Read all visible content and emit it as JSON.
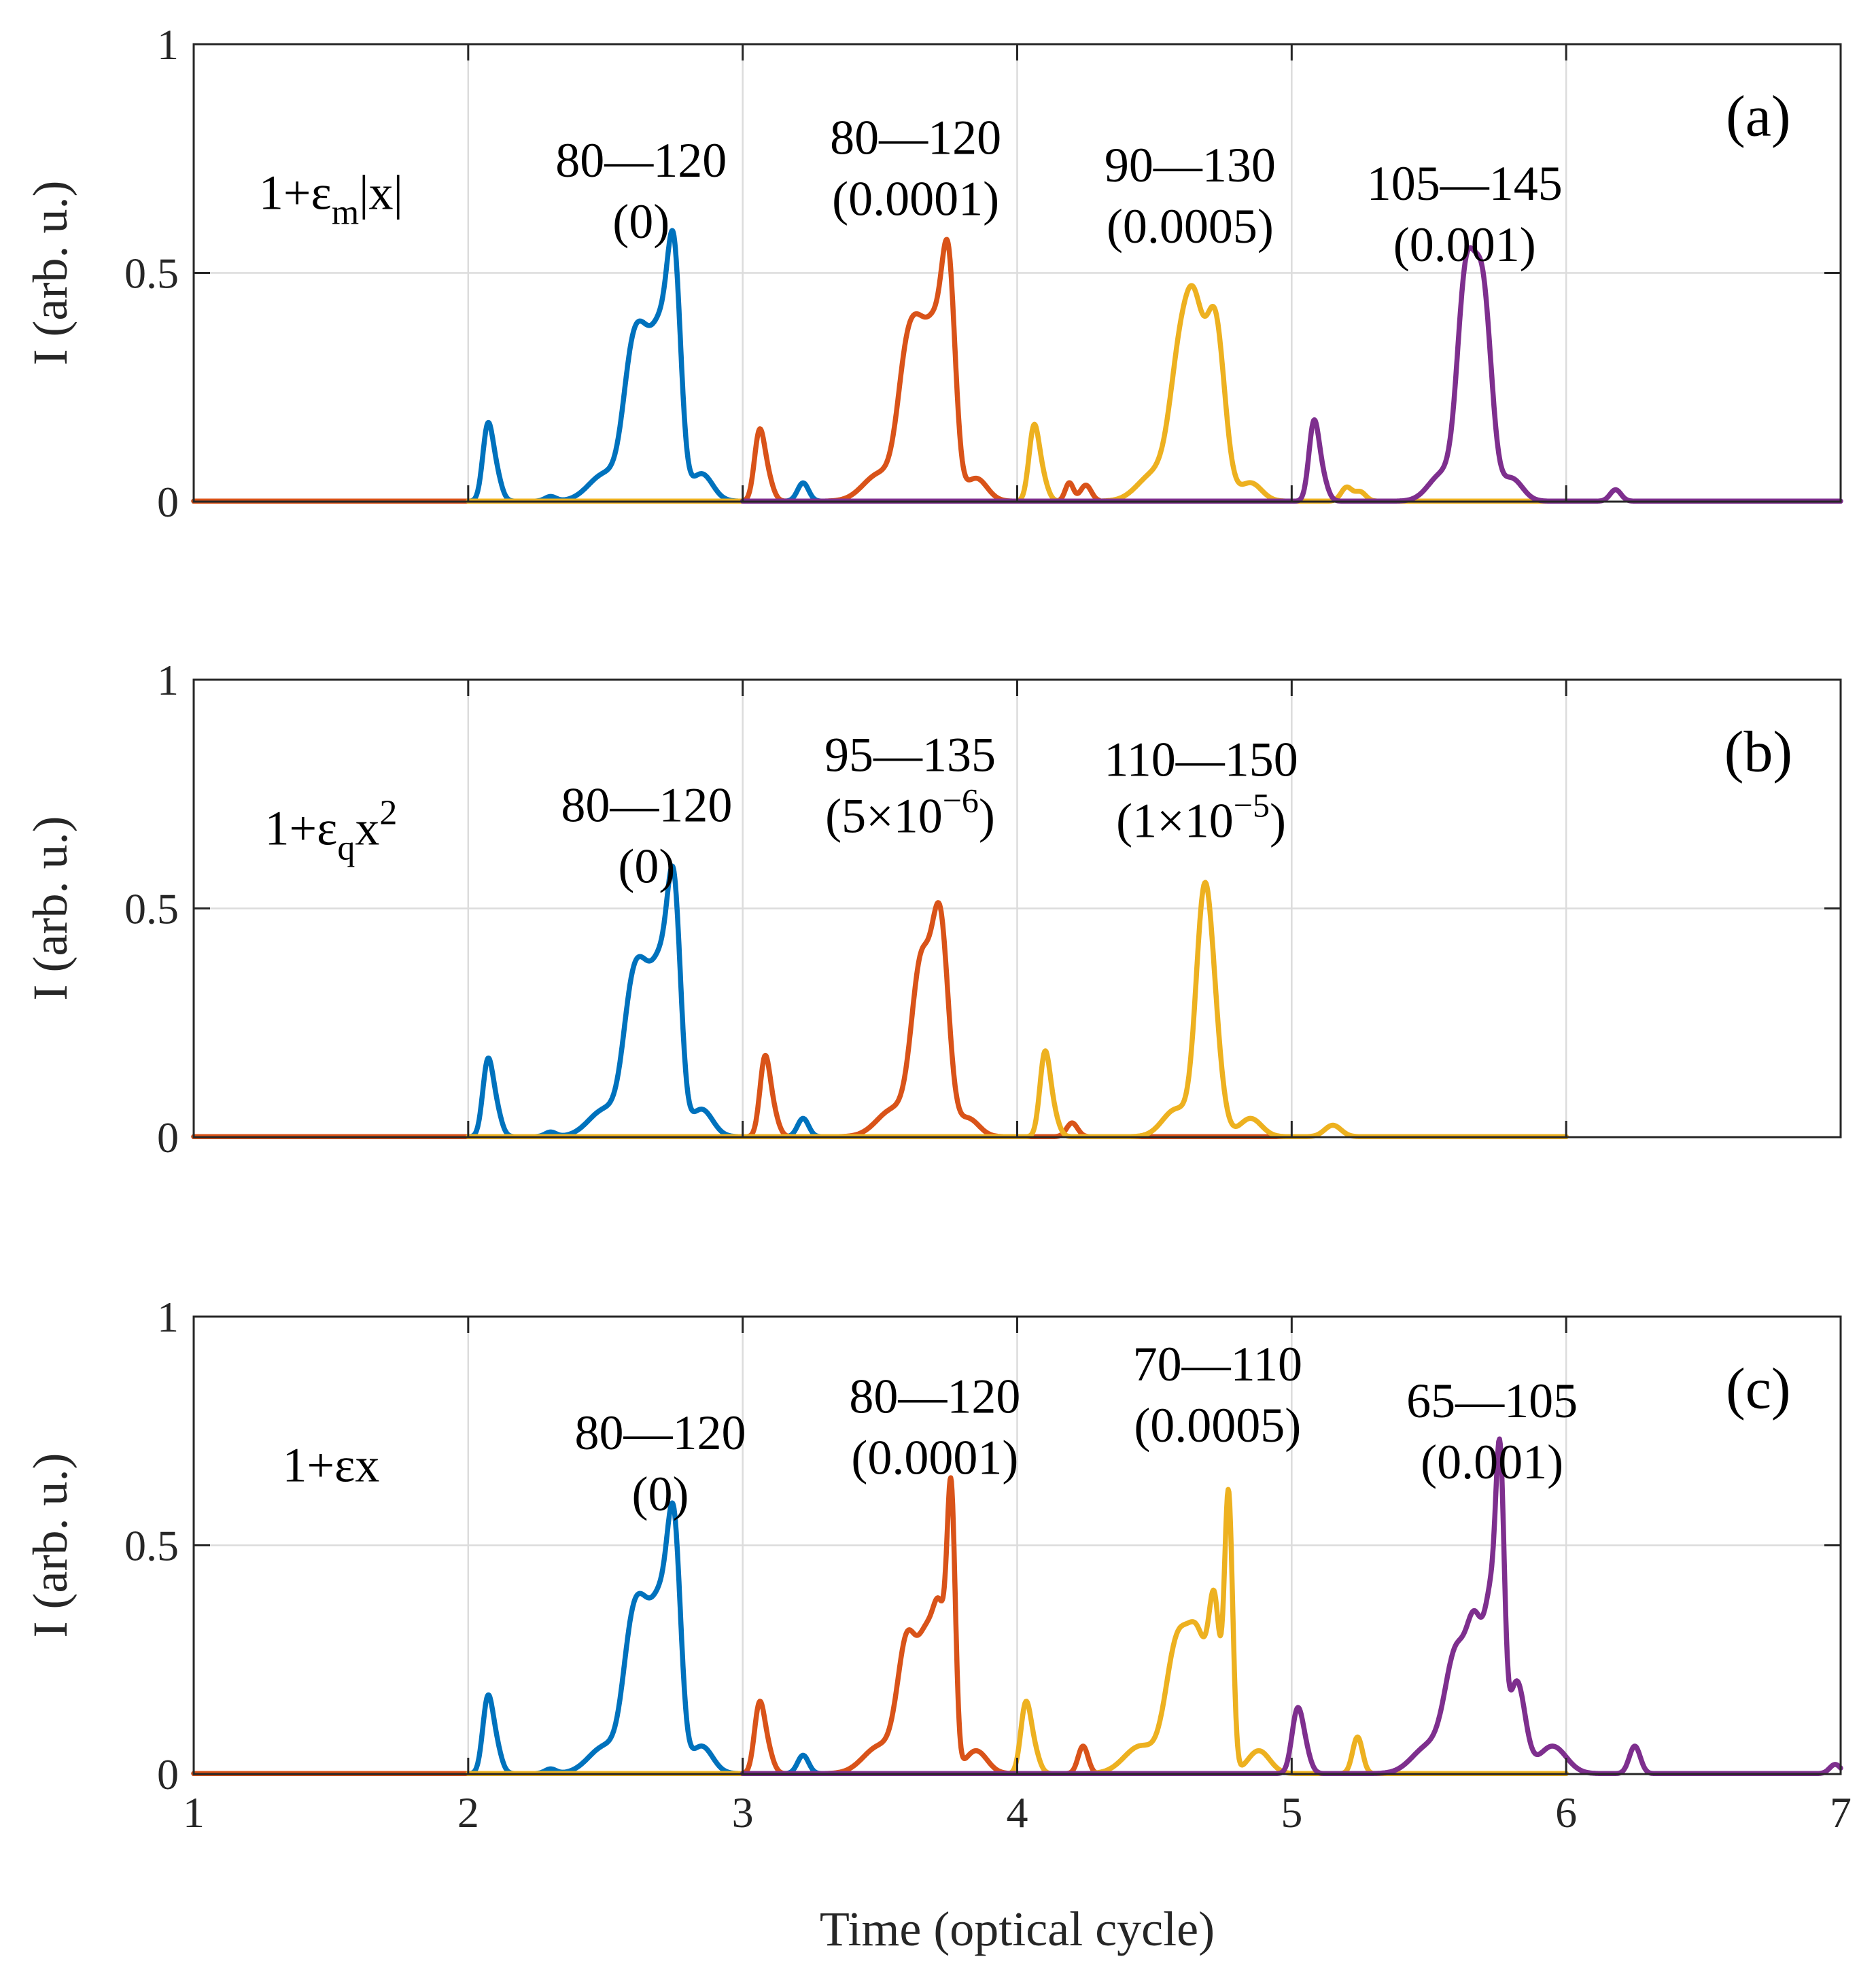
{
  "xlabel": "Time (optical cycle)",
  "colors": {
    "blue": "#0072BD",
    "orange": "#D95319",
    "yellow": "#EDB120",
    "purple": "#7E2F8E"
  },
  "chart_data": [
    {
      "type": "line",
      "panel": "(a)",
      "formula": {
        "base": "1+ε",
        "sub": "m",
        "tail": "|x|",
        "sup": ""
      },
      "ylabel": "I (arb. u.)",
      "xlim": [
        1,
        7
      ],
      "ylim": [
        0,
        1
      ],
      "xticks": [
        1,
        2,
        3,
        4,
        5,
        6,
        7
      ],
      "yticks": [
        0,
        0.5,
        1
      ],
      "ytick_labels": [
        "0",
        "0.5",
        "1"
      ],
      "grid": true,
      "annotations": [
        {
          "line1": "80—120",
          "line2": "(0)",
          "x": 2.63,
          "y": 0.71
        },
        {
          "line1": "80—120",
          "line2": "(0.0001)",
          "x": 3.63,
          "y": 0.76
        },
        {
          "line1": "90—130",
          "line2": "(0.0005)",
          "x": 4.63,
          "y": 0.7
        },
        {
          "line1": "105—145",
          "line2": "(0.001)",
          "x": 5.63,
          "y": 0.66
        }
      ],
      "series": [
        {
          "color": "#0072BD",
          "x_range": [
            1.0,
            3.3
          ],
          "peaks": [
            [
              2.07,
              0.15,
              0.018
            ],
            [
              2.1,
              0.06,
              0.02
            ],
            [
              2.3,
              0.01,
              0.02
            ],
            [
              2.6,
              0.3,
              0.035
            ],
            [
              2.65,
              0.2,
              0.03
            ],
            [
              2.7,
              0.3,
              0.03
            ],
            [
              2.75,
              0.5,
              0.025
            ],
            [
              2.5,
              0.06,
              0.06
            ],
            [
              2.85,
              0.06,
              0.04
            ],
            [
              3.22,
              0.04,
              0.02
            ]
          ]
        },
        {
          "color": "#D95319",
          "x_range": [
            1.0,
            4.3
          ],
          "peaks": [
            [
              3.06,
              0.14,
              0.018
            ],
            [
              3.09,
              0.05,
              0.02
            ],
            [
              3.6,
              0.3,
              0.035
            ],
            [
              3.65,
              0.22,
              0.03
            ],
            [
              3.7,
              0.3,
              0.03
            ],
            [
              3.75,
              0.48,
              0.025
            ],
            [
              3.5,
              0.06,
              0.06
            ],
            [
              3.85,
              0.05,
              0.04
            ],
            [
              4.19,
              0.04,
              0.015
            ],
            [
              4.25,
              0.035,
              0.02
            ]
          ]
        },
        {
          "color": "#EDB120",
          "x_range": [
            2.0,
            6.0
          ],
          "peaks": [
            [
              4.06,
              0.15,
              0.018
            ],
            [
              4.09,
              0.05,
              0.02
            ],
            [
              4.6,
              0.33,
              0.04
            ],
            [
              4.65,
              0.25,
              0.03
            ],
            [
              4.72,
              0.4,
              0.035
            ],
            [
              4.5,
              0.06,
              0.06
            ],
            [
              4.85,
              0.04,
              0.04
            ],
            [
              5.2,
              0.03,
              0.02
            ],
            [
              5.25,
              0.02,
              0.02
            ]
          ]
        },
        {
          "color": "#7E2F8E",
          "x_range": [
            3.0,
            7.0
          ],
          "peaks": [
            [
              5.08,
              0.16,
              0.018
            ],
            [
              5.11,
              0.05,
              0.02
            ],
            [
              5.63,
              0.38,
              0.03
            ],
            [
              5.7,
              0.4,
              0.03
            ],
            [
              5.66,
              0.15,
              0.03
            ],
            [
              5.55,
              0.06,
              0.05
            ],
            [
              5.8,
              0.05,
              0.04
            ],
            [
              6.18,
              0.025,
              0.02
            ]
          ]
        }
      ]
    },
    {
      "type": "line",
      "panel": "(b)",
      "formula": {
        "base": "1+ε",
        "sub": "q",
        "tail": "x",
        "sup": "2"
      },
      "ylabel": "I (arb. u.)",
      "xlim": [
        1,
        7
      ],
      "ylim": [
        0,
        1
      ],
      "xticks": [
        1,
        2,
        3,
        4,
        5,
        6,
        7
      ],
      "yticks": [
        0,
        0.5,
        1
      ],
      "ytick_labels": [
        "0",
        "0.5",
        "1"
      ],
      "grid": true,
      "annotations": [
        {
          "line1": "80—120",
          "line2": "(0)",
          "x": 2.65,
          "y": 0.69
        },
        {
          "line1": "95—135",
          "line2": "(5×10",
          "exp": "−6",
          "close": ")",
          "x": 3.61,
          "y": 0.8
        },
        {
          "line1": "110—150",
          "line2": "(1×10",
          "exp": "−5",
          "close": ")",
          "x": 4.67,
          "y": 0.79
        }
      ],
      "series": [
        {
          "color": "#0072BD",
          "x_range": [
            1.0,
            3.3
          ],
          "peaks": [
            [
              2.07,
              0.15,
              0.018
            ],
            [
              2.1,
              0.06,
              0.02
            ],
            [
              2.3,
              0.01,
              0.02
            ],
            [
              2.6,
              0.3,
              0.035
            ],
            [
              2.65,
              0.2,
              0.03
            ],
            [
              2.7,
              0.3,
              0.03
            ],
            [
              2.75,
              0.5,
              0.025
            ],
            [
              2.5,
              0.06,
              0.06
            ],
            [
              2.85,
              0.06,
              0.04
            ],
            [
              3.22,
              0.04,
              0.02
            ]
          ]
        },
        {
          "color": "#D95319",
          "x_range": [
            1.0,
            5.0
          ],
          "peaks": [
            [
              3.08,
              0.16,
              0.018
            ],
            [
              3.11,
              0.05,
              0.02
            ],
            [
              3.65,
              0.36,
              0.035
            ],
            [
              3.72,
              0.45,
              0.03
            ],
            [
              3.55,
              0.06,
              0.06
            ],
            [
              3.82,
              0.04,
              0.04
            ],
            [
              4.2,
              0.03,
              0.02
            ]
          ]
        },
        {
          "color": "#EDB120",
          "x_range": [
            2.0,
            6.0
          ],
          "peaks": [
            [
              4.1,
              0.17,
              0.018
            ],
            [
              4.13,
              0.05,
              0.02
            ],
            [
              4.68,
              0.48,
              0.03
            ],
            [
              4.72,
              0.15,
              0.03
            ],
            [
              4.58,
              0.06,
              0.05
            ],
            [
              4.85,
              0.04,
              0.04
            ],
            [
              5.15,
              0.025,
              0.03
            ]
          ]
        }
      ]
    },
    {
      "type": "line",
      "panel": "(c)",
      "formula": {
        "base": "1+εx",
        "sub": "",
        "tail": "",
        "sup": ""
      },
      "ylabel": "I (arb. u.)",
      "xlabel": "Time (optical cycle)",
      "xlim": [
        1,
        7
      ],
      "ylim": [
        0,
        1
      ],
      "xticks": [
        1,
        2,
        3,
        4,
        5,
        6,
        7
      ],
      "yticks": [
        0,
        0.5,
        1
      ],
      "xtick_labels": [
        "1",
        "2",
        "3",
        "4",
        "5",
        "6",
        "7"
      ],
      "ytick_labels": [
        "0",
        "0.5",
        "1"
      ],
      "grid": true,
      "annotations": [
        {
          "line1": "80—120",
          "line2": "(0)",
          "x": 2.7,
          "y": 0.71
        },
        {
          "line1": "80—120",
          "line2": "(0.0001)",
          "x": 3.7,
          "y": 0.79
        },
        {
          "line1": "70—110",
          "line2": "(0.0005)",
          "x": 4.73,
          "y": 0.86
        },
        {
          "line1": "65—105",
          "line2": "(0.001)",
          "x": 5.73,
          "y": 0.78
        }
      ],
      "series": [
        {
          "color": "#0072BD",
          "x_range": [
            1.0,
            3.3
          ],
          "peaks": [
            [
              2.07,
              0.15,
              0.018
            ],
            [
              2.1,
              0.06,
              0.02
            ],
            [
              2.3,
              0.01,
              0.02
            ],
            [
              2.6,
              0.3,
              0.035
            ],
            [
              2.65,
              0.2,
              0.03
            ],
            [
              2.7,
              0.3,
              0.03
            ],
            [
              2.75,
              0.5,
              0.025
            ],
            [
              2.5,
              0.06,
              0.06
            ],
            [
              2.85,
              0.06,
              0.04
            ],
            [
              3.22,
              0.04,
              0.02
            ]
          ]
        },
        {
          "color": "#D95319",
          "x_range": [
            1.0,
            4.3
          ],
          "peaks": [
            [
              3.06,
              0.14,
              0.018
            ],
            [
              3.09,
              0.05,
              0.02
            ],
            [
              3.6,
              0.28,
              0.035
            ],
            [
              3.67,
              0.25,
              0.03
            ],
            [
              3.72,
              0.3,
              0.025
            ],
            [
              3.76,
              0.55,
              0.015
            ],
            [
              3.5,
              0.06,
              0.06
            ],
            [
              3.85,
              0.05,
              0.04
            ],
            [
              4.24,
              0.06,
              0.018
            ]
          ]
        },
        {
          "color": "#EDB120",
          "x_range": [
            2.0,
            6.0
          ],
          "peaks": [
            [
              4.03,
              0.14,
              0.018
            ],
            [
              4.06,
              0.05,
              0.02
            ],
            [
              4.58,
              0.26,
              0.04
            ],
            [
              4.66,
              0.28,
              0.04
            ],
            [
              4.72,
              0.3,
              0.02
            ],
            [
              4.77,
              0.6,
              0.015
            ],
            [
              4.45,
              0.06,
              0.06
            ],
            [
              4.88,
              0.05,
              0.04
            ],
            [
              5.24,
              0.08,
              0.018
            ]
          ]
        },
        {
          "color": "#7E2F8E",
          "x_range": [
            3.0,
            7.0
          ],
          "peaks": [
            [
              5.02,
              0.13,
              0.02
            ],
            [
              5.05,
              0.04,
              0.02
            ],
            [
              5.6,
              0.25,
              0.04
            ],
            [
              5.67,
              0.28,
              0.03
            ],
            [
              5.73,
              0.35,
              0.025
            ],
            [
              5.76,
              0.52,
              0.015
            ],
            [
              5.82,
              0.2,
              0.03
            ],
            [
              5.5,
              0.06,
              0.06
            ],
            [
              5.95,
              0.06,
              0.05
            ],
            [
              6.25,
              0.06,
              0.02
            ],
            [
              6.98,
              0.02,
              0.02
            ]
          ]
        }
      ]
    }
  ]
}
